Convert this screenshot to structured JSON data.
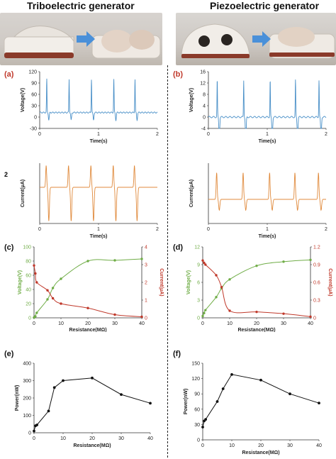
{
  "titles": {
    "triboelectric": "Triboelectric generator",
    "piezoelectric": "Piezoelectric generator"
  },
  "colors": {
    "voltage_blue": "#4a90c8",
    "current_orange": "#e08a3c",
    "voltage_green": "#70ad47",
    "current_red": "#c0392b",
    "power_black": "#111111",
    "panel_label_red": "#c0392b",
    "arrow_blue": "#4a90d9"
  },
  "misc": {
    "stray_label": "2"
  },
  "chart_data": [
    {
      "id": "a_voltage",
      "panel_label": "(a)",
      "type": "line",
      "color": "#4a90c8",
      "xlabel": "Time(s)",
      "ylabel": "Voltage(V)",
      "xlim": [
        0,
        2
      ],
      "ylim": [
        -30,
        120
      ],
      "xticks": [
        0,
        1,
        2
      ],
      "yticks": [
        -30,
        0,
        30,
        60,
        90,
        120
      ],
      "peaks": [
        0.12,
        0.5,
        0.88,
        1.26,
        1.62
      ],
      "peak_height": 100,
      "baseline": 12
    },
    {
      "id": "a_current",
      "panel_label": "",
      "type": "line",
      "color": "#e08a3c",
      "xlabel": "Time(s)",
      "ylabel": "Current(μA)",
      "xlim": [
        0,
        2
      ],
      "ylim": [
        -3,
        2
      ],
      "xticks": [
        0,
        1,
        2
      ],
      "yticks": [],
      "peaks": [
        0.12,
        0.5,
        0.88,
        1.26,
        1.62
      ],
      "peak_height": 1.8,
      "dip": -2.8,
      "baseline": 0
    },
    {
      "id": "b_voltage",
      "panel_label": "(b)",
      "type": "line",
      "color": "#4a90c8",
      "xlabel": "Time(s)",
      "ylabel": "Voltage(V)",
      "xlim": [
        0,
        2
      ],
      "ylim": [
        -4,
        16
      ],
      "xticks": [
        0,
        1,
        2
      ],
      "yticks": [
        -4,
        0,
        4,
        8,
        12,
        16
      ],
      "peaks": [
        0.15,
        0.6,
        1.05,
        1.48,
        1.88
      ],
      "peak_height": 13,
      "baseline": 0
    },
    {
      "id": "b_current",
      "panel_label": "",
      "type": "line",
      "color": "#e08a3c",
      "xlabel": "Time(s)",
      "ylabel": "Current(μA)",
      "xlim": [
        0,
        2
      ],
      "ylim": [
        -1,
        1.5
      ],
      "xticks": [
        0,
        1,
        2
      ],
      "yticks": [],
      "peaks": [
        0.15,
        0.6,
        1.05,
        1.48,
        1.88
      ],
      "peak_height": 1.1,
      "dip": -0.45,
      "baseline": 0
    },
    {
      "id": "c",
      "panel_label": "(c)",
      "type": "line",
      "xlabel": "Resistance(MΩ)",
      "ylabel_left": "Voltage(V)",
      "ylabel_right": "Current(μA)",
      "xlim": [
        0,
        40
      ],
      "ylim_left": [
        0,
        100
      ],
      "ylim_right": [
        0,
        4
      ],
      "xticks": [
        0,
        10,
        20,
        30,
        40
      ],
      "yticks_left": [
        0,
        20,
        40,
        60,
        80,
        100
      ],
      "yticks_right": [
        0,
        1,
        2,
        3,
        4
      ],
      "series": [
        {
          "axis": "left",
          "color": "#70ad47",
          "x": [
            0,
            0.5,
            1,
            5,
            7,
            10,
            20,
            30,
            40
          ],
          "values": [
            0.5,
            2,
            7,
            26,
            42,
            55,
            80,
            81,
            83
          ]
        },
        {
          "axis": "right",
          "color": "#c0392b",
          "x": [
            0,
            0.5,
            1,
            5,
            7,
            10,
            20,
            30,
            40
          ],
          "values": [
            2.95,
            2.5,
            2.0,
            1.55,
            1.1,
            0.8,
            0.55,
            0.18,
            0.06
          ]
        }
      ]
    },
    {
      "id": "d",
      "panel_label": "(d)",
      "type": "line",
      "xlabel": "Resistance(MΩ)",
      "ylabel_left": "Voltage(V)",
      "ylabel_right": "Current(μA)",
      "xlim": [
        0,
        40
      ],
      "ylim_left": [
        0,
        12
      ],
      "ylim_right": [
        0,
        1.2
      ],
      "xticks": [
        0,
        10,
        20,
        30,
        40
      ],
      "yticks_left": [
        0,
        3,
        6,
        9,
        12
      ],
      "yticks_right": [
        0,
        0.3,
        0.6,
        0.9,
        1.2
      ],
      "series": [
        {
          "axis": "left",
          "color": "#70ad47",
          "x": [
            0,
            0.5,
            1,
            5,
            7,
            10,
            20,
            30,
            40
          ],
          "values": [
            0.3,
            0.8,
            1.3,
            3.5,
            5.0,
            6.5,
            8.8,
            9.5,
            9.8
          ]
        },
        {
          "axis": "right",
          "color": "#c0392b",
          "x": [
            0,
            0.5,
            1,
            5,
            7,
            10,
            20,
            30,
            40
          ],
          "values": [
            0.97,
            0.93,
            0.9,
            0.72,
            0.52,
            0.12,
            0.1,
            0.07,
            0.02
          ]
        }
      ]
    },
    {
      "id": "e",
      "panel_label": "(e)",
      "type": "line",
      "color": "#111111",
      "xlabel": "Resistance(MΩ)",
      "ylabel": "Power(nW)",
      "xlim": [
        0,
        40
      ],
      "ylim": [
        0,
        400
      ],
      "xticks": [
        0,
        10,
        20,
        30,
        40
      ],
      "yticks": [
        0,
        100,
        200,
        300,
        400
      ],
      "x": [
        0,
        0.5,
        1,
        5,
        7,
        10,
        20,
        30,
        40
      ],
      "values": [
        10,
        40,
        45,
        125,
        260,
        300,
        315,
        220,
        170
      ]
    },
    {
      "id": "f",
      "panel_label": "(f)",
      "type": "line",
      "color": "#111111",
      "xlabel": "Resistance(MΩ)",
      "ylabel": "Power(nW)",
      "xlim": [
        0,
        40
      ],
      "ylim": [
        0,
        150
      ],
      "xticks": [
        0,
        10,
        20,
        30,
        40
      ],
      "yticks": [
        0,
        30,
        60,
        90,
        120,
        150
      ],
      "x": [
        0,
        0.5,
        1,
        5,
        7,
        10,
        20,
        30,
        40
      ],
      "values": [
        25,
        37,
        40,
        75,
        100,
        128,
        117,
        90,
        72
      ]
    }
  ]
}
